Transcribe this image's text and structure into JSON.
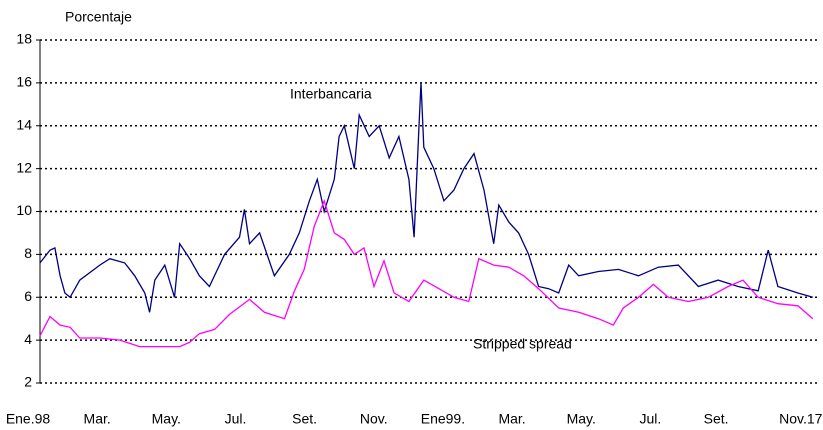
{
  "chart_data": {
    "type": "line",
    "y_label": "Porcentaje",
    "xlim": [
      0,
      22.5
    ],
    "xticks": [
      {
        "value": 0,
        "label": "Ene.98"
      },
      {
        "value": 2,
        "label": "Mar."
      },
      {
        "value": 4,
        "label": "May."
      },
      {
        "value": 6,
        "label": "Jul."
      },
      {
        "value": 8,
        "label": "Set."
      },
      {
        "value": 10,
        "label": "Nov."
      },
      {
        "value": 12,
        "label": "Ene99."
      },
      {
        "value": 14,
        "label": "Mar."
      },
      {
        "value": 16,
        "label": "May."
      },
      {
        "value": 18,
        "label": "Jul."
      },
      {
        "value": 19.9,
        "label": "Set."
      },
      {
        "value": 22.35,
        "label": "Nov.17"
      }
    ],
    "ylim": [
      2,
      18
    ],
    "yticks": [
      2,
      4,
      6,
      8,
      10,
      12,
      14,
      16,
      18
    ],
    "grid": true,
    "series": [
      {
        "name": "Interbancaria",
        "color": "#000080",
        "x": [
          0,
          0.29,
          0.43,
          0.58,
          0.72,
          0.87,
          1.15,
          1.73,
          2.02,
          2.45,
          2.74,
          3.03,
          3.17,
          3.32,
          3.61,
          3.89,
          4.04,
          4.33,
          4.61,
          4.9,
          5.34,
          5.77,
          5.91,
          6.06,
          6.35,
          6.78,
          7.21,
          7.5,
          7.79,
          8.02,
          8.22,
          8.51,
          8.65,
          8.8,
          9.09,
          9.23,
          9.52,
          9.81,
          10.1,
          10.38,
          10.67,
          10.82,
          10.96,
          11.02,
          11.1,
          11.39,
          11.68,
          11.97,
          12.26,
          12.55,
          12.84,
          13.12,
          13.27,
          13.56,
          13.84,
          14.13,
          14.42,
          14.71,
          15.0,
          15.29,
          15.58,
          16.15,
          16.73,
          17.31,
          17.88,
          18.46,
          19.04,
          19.61,
          20.19,
          20.77,
          21.06,
          21.34,
          21.92,
          22.35
        ],
        "values": [
          7.6,
          8.2,
          8.3,
          7.0,
          6.2,
          6.0,
          6.8,
          7.5,
          7.8,
          7.6,
          7.0,
          6.2,
          5.3,
          6.8,
          7.5,
          6.0,
          8.5,
          7.8,
          7.0,
          6.5,
          8.0,
          8.8,
          10.1,
          8.5,
          9.0,
          7.0,
          8.0,
          9.0,
          10.5,
          11.5,
          10.0,
          11.5,
          13.5,
          14.0,
          12.0,
          14.5,
          13.5,
          14.0,
          12.5,
          13.5,
          11.5,
          8.8,
          14.0,
          16.0,
          13.0,
          12.0,
          10.5,
          11.0,
          12.0,
          12.7,
          11.0,
          8.5,
          10.3,
          9.5,
          9.0,
          8.0,
          6.5,
          6.4,
          6.2,
          7.5,
          7.0,
          7.2,
          7.3,
          7.0,
          7.4,
          7.5,
          6.5,
          6.8,
          6.5,
          6.3,
          8.2,
          6.5,
          6.2,
          6.0
        ]
      },
      {
        "name": "Stripped spread",
        "color": "#ff00ff",
        "x": [
          0,
          0.29,
          0.58,
          0.87,
          1.15,
          1.73,
          2.31,
          2.88,
          3.46,
          4.04,
          4.33,
          4.61,
          5.05,
          5.48,
          6.06,
          6.49,
          7.07,
          7.36,
          7.64,
          7.93,
          8.22,
          8.51,
          8.8,
          9.09,
          9.37,
          9.66,
          9.95,
          10.24,
          10.67,
          11.1,
          11.54,
          11.97,
          12.4,
          12.69,
          13.12,
          13.56,
          13.99,
          14.42,
          15.0,
          15.58,
          16.15,
          16.58,
          16.87,
          17.31,
          17.74,
          18.17,
          18.75,
          19.33,
          19.9,
          20.33,
          20.77,
          21.34,
          21.92,
          22.35
        ],
        "values": [
          4.2,
          5.1,
          4.7,
          4.6,
          4.1,
          4.1,
          4.0,
          3.7,
          3.7,
          3.7,
          3.9,
          4.3,
          4.5,
          5.2,
          5.9,
          5.3,
          5.0,
          6.3,
          7.3,
          9.3,
          10.5,
          9.0,
          8.7,
          8.0,
          8.3,
          6.5,
          7.7,
          6.2,
          5.8,
          6.8,
          6.4,
          6.0,
          5.8,
          7.8,
          7.5,
          7.4,
          7.0,
          6.4,
          5.5,
          5.3,
          5.0,
          4.7,
          5.5,
          6.0,
          6.6,
          6.0,
          5.8,
          6.0,
          6.5,
          6.8,
          6.0,
          5.7,
          5.6,
          5.0
        ]
      }
    ]
  }
}
